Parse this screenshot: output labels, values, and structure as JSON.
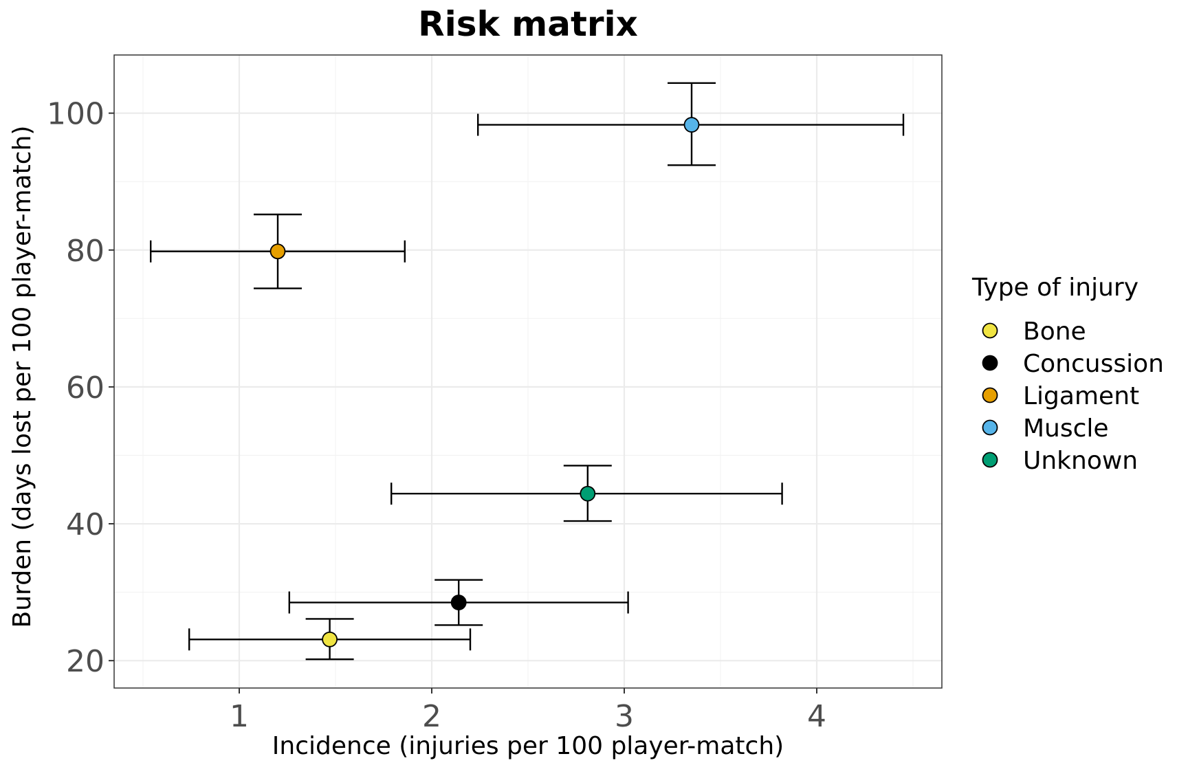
{
  "chart_data": {
    "type": "scatter",
    "title": "Risk matrix",
    "xlabel": "Incidence (injuries per 100 player-match)",
    "ylabel": "Burden (days lost per 100 player-match)",
    "xlim": [
      0.35,
      4.65
    ],
    "ylim": [
      16,
      108.5
    ],
    "x_ticks": [
      1,
      2,
      3,
      4
    ],
    "y_ticks": [
      20,
      40,
      60,
      80,
      100
    ],
    "grid": true,
    "legend": {
      "title": "Type of injury",
      "position": "right"
    },
    "series": [
      {
        "name": "Bone",
        "color": "#f0e442",
        "x": 1.47,
        "y": 23.1,
        "x_lower": 0.74,
        "x_upper": 2.2,
        "y_lower": 20.2,
        "y_upper": 26.1
      },
      {
        "name": "Concussion",
        "color": "#000000",
        "x": 2.14,
        "y": 28.5,
        "x_lower": 1.26,
        "x_upper": 3.02,
        "y_lower": 25.2,
        "y_upper": 31.8
      },
      {
        "name": "Ligament",
        "color": "#e69f00",
        "x": 1.2,
        "y": 79.8,
        "x_lower": 0.54,
        "x_upper": 1.86,
        "y_lower": 74.4,
        "y_upper": 85.2
      },
      {
        "name": "Muscle",
        "color": "#56b4e9",
        "x": 3.35,
        "y": 98.3,
        "x_lower": 2.24,
        "x_upper": 4.45,
        "y_lower": 92.4,
        "y_upper": 104.4
      },
      {
        "name": "Unknown",
        "color": "#009e73",
        "x": 2.81,
        "y": 44.4,
        "x_lower": 1.79,
        "x_upper": 3.82,
        "y_lower": 40.4,
        "y_upper": 48.5
      }
    ]
  }
}
